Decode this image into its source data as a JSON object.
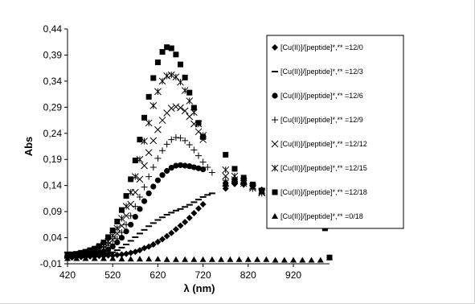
{
  "chart_data": {
    "type": "scatter",
    "title": "",
    "xlabel": "λ (nm)",
    "ylabel": "Abs",
    "xlim": [
      420,
      1000
    ],
    "ylim": [
      -0.01,
      0.44
    ],
    "xticks": [
      420,
      520,
      620,
      720,
      820,
      920
    ],
    "yticks": [
      -0.01,
      0.04,
      0.09,
      0.14,
      0.19,
      0.24,
      0.29,
      0.34,
      0.39,
      0.44
    ],
    "xtick_labels": [
      "420",
      "520",
      "620",
      "720",
      "820",
      "920"
    ],
    "ytick_labels": [
      "-0,01",
      "0,04",
      "0,09",
      "0,14",
      "0,19",
      "0,24",
      "0,29",
      "0,34",
      "0,39",
      "0,44"
    ],
    "grid": false,
    "legend_position": "right",
    "series": [
      {
        "name": "[Cu(II)]/[peptide]*,** =12/0",
        "marker": "diamond",
        "x": [
          420,
          430,
          440,
          450,
          460,
          470,
          480,
          490,
          500,
          510,
          520,
          530,
          540,
          550,
          560,
          570,
          580,
          590,
          600,
          610,
          620,
          630,
          640,
          650,
          660,
          670,
          680,
          690,
          700,
          710,
          720
        ],
        "y": [
          0.002,
          0.002,
          0.003,
          0.003,
          0.003,
          0.004,
          0.004,
          0.005,
          0.005,
          0.006,
          0.006,
          0.007,
          0.008,
          0.009,
          0.011,
          0.013,
          0.016,
          0.02,
          0.023,
          0.027,
          0.032,
          0.037,
          0.043,
          0.049,
          0.056,
          0.063,
          0.07,
          0.078,
          0.087,
          0.096,
          0.104
        ]
      },
      {
        "name": "[Cu(II)]/[peptide]*,** =12/3",
        "marker": "dash",
        "x": [
          420,
          430,
          440,
          450,
          460,
          470,
          480,
          490,
          500,
          510,
          520,
          530,
          540,
          550,
          560,
          570,
          580,
          590,
          600,
          610,
          620,
          630,
          640,
          650,
          660,
          670,
          680,
          690,
          700,
          710,
          720,
          730,
          740
        ],
        "y": [
          0.004,
          0.004,
          0.005,
          0.005,
          0.006,
          0.006,
          0.007,
          0.008,
          0.009,
          0.01,
          0.012,
          0.016,
          0.021,
          0.027,
          0.034,
          0.041,
          0.048,
          0.055,
          0.062,
          0.068,
          0.074,
          0.079,
          0.084,
          0.088,
          0.092,
          0.095,
          0.099,
          0.103,
          0.108,
          0.113,
          0.118,
          0.122,
          0.125
        ]
      },
      {
        "name": "[Cu(II)]/[peptide]*,** =12/6",
        "marker": "circle",
        "x": [
          420,
          430,
          440,
          450,
          460,
          470,
          480,
          490,
          500,
          510,
          520,
          530,
          540,
          550,
          560,
          570,
          580,
          590,
          600,
          610,
          620,
          630,
          640,
          650,
          660,
          670,
          680,
          690,
          700,
          710,
          720
        ],
        "y": [
          0.004,
          0.005,
          0.005,
          0.006,
          0.007,
          0.008,
          0.009,
          0.011,
          0.013,
          0.017,
          0.023,
          0.031,
          0.04,
          0.052,
          0.065,
          0.08,
          0.095,
          0.11,
          0.125,
          0.138,
          0.15,
          0.16,
          0.168,
          0.174,
          0.178,
          0.179,
          0.178,
          0.177,
          0.175,
          0.173,
          0.171
        ]
      },
      {
        "name": "[Cu(II)]/[peptide]*,** =12/9",
        "marker": "plus",
        "x": [
          420,
          430,
          440,
          450,
          460,
          470,
          480,
          490,
          500,
          510,
          520,
          530,
          540,
          550,
          560,
          570,
          580,
          590,
          600,
          610,
          620,
          630,
          640,
          650,
          660,
          670,
          680,
          690,
          700,
          710,
          720,
          730,
          740
        ],
        "y": [
          0.005,
          0.005,
          0.006,
          0.007,
          0.008,
          0.009,
          0.011,
          0.013,
          0.016,
          0.021,
          0.028,
          0.038,
          0.05,
          0.065,
          0.082,
          0.1,
          0.118,
          0.137,
          0.157,
          0.175,
          0.192,
          0.207,
          0.219,
          0.228,
          0.232,
          0.231,
          0.226,
          0.218,
          0.208,
          0.197,
          0.185,
          0.175,
          0.165
        ]
      },
      {
        "name": "[Cu(II)]/[peptide]*,** =12/12",
        "marker": "x",
        "x": [
          420,
          430,
          440,
          450,
          460,
          470,
          480,
          490,
          500,
          510,
          520,
          530,
          540,
          550,
          560,
          570,
          580,
          590,
          600,
          610,
          620,
          630,
          640,
          650,
          660,
          670,
          680,
          690,
          700,
          710,
          720
        ],
        "y": [
          0.006,
          0.006,
          0.007,
          0.008,
          0.009,
          0.011,
          0.013,
          0.016,
          0.02,
          0.027,
          0.036,
          0.048,
          0.063,
          0.082,
          0.104,
          0.127,
          0.152,
          0.178,
          0.203,
          0.226,
          0.247,
          0.265,
          0.279,
          0.288,
          0.291,
          0.289,
          0.283,
          0.272,
          0.258,
          0.243,
          0.228
        ]
      },
      {
        "name": "[Cu(II)]/[peptide]*,** =12/15",
        "marker": "asterisk",
        "x": [
          420,
          430,
          440,
          450,
          460,
          470,
          480,
          490,
          500,
          510,
          520,
          530,
          540,
          550,
          560,
          570,
          580,
          590,
          600,
          610,
          620,
          630,
          640,
          650,
          660,
          670,
          680,
          690,
          700,
          710,
          720
        ],
        "y": [
          0.007,
          0.007,
          0.008,
          0.009,
          0.011,
          0.013,
          0.016,
          0.02,
          0.025,
          0.033,
          0.044,
          0.058,
          0.077,
          0.1,
          0.127,
          0.157,
          0.19,
          0.225,
          0.26,
          0.293,
          0.32,
          0.34,
          0.35,
          0.352,
          0.348,
          0.338,
          0.322,
          0.302,
          0.28,
          0.258,
          0.236
        ]
      },
      {
        "name": "[Cu(II)]/[peptide]*,** =12/18",
        "marker": "square",
        "x": [
          420,
          430,
          440,
          450,
          460,
          470,
          480,
          490,
          500,
          510,
          520,
          530,
          540,
          550,
          560,
          570,
          580,
          590,
          600,
          610,
          620,
          630,
          640,
          650,
          660,
          670,
          680,
          690,
          700,
          710,
          720
        ],
        "y": [
          0.008,
          0.008,
          0.009,
          0.011,
          0.013,
          0.016,
          0.019,
          0.024,
          0.031,
          0.041,
          0.054,
          0.071,
          0.093,
          0.12,
          0.152,
          0.188,
          0.228,
          0.27,
          0.31,
          0.346,
          0.376,
          0.396,
          0.405,
          0.403,
          0.391,
          0.372,
          0.347,
          0.318,
          0.289,
          0.26,
          0.233
        ]
      },
      {
        "name": "[Cu(II)]/[peptide]*,** =0/18",
        "marker": "triangle",
        "x": [
          420,
          440,
          460,
          480,
          500,
          520,
          540,
          560,
          580,
          600,
          620,
          640,
          660,
          680,
          700,
          720,
          740,
          760,
          780,
          800,
          820,
          840,
          860,
          880,
          900,
          920,
          940,
          960,
          980
        ],
        "y": [
          0.0,
          0.0,
          0.0,
          0.0,
          0.0,
          0.0,
          -0.001,
          -0.001,
          -0.001,
          -0.001,
          -0.001,
          -0.002,
          -0.002,
          -0.002,
          -0.002,
          -0.002,
          -0.002,
          -0.002,
          -0.002,
          -0.002,
          -0.002,
          -0.002,
          -0.002,
          -0.003,
          -0.003,
          -0.003,
          -0.003,
          -0.003,
          -0.003
        ]
      }
    ],
    "tail_x": [
      770,
      790,
      810,
      830,
      850,
      870,
      890,
      910,
      930,
      950,
      970,
      990
    ],
    "tail_series": [
      {
        "marker": "diamond",
        "y": [
          0.134,
          0.143,
          0.142,
          0.138,
          0.132,
          0.126,
          0.12,
          0.113,
          0.106,
          0.098,
          0.09,
          0.082
        ]
      },
      {
        "marker": "dash",
        "y": [
          0.139,
          0.145,
          0.144,
          0.14,
          0.134,
          0.127,
          0.12,
          0.112,
          0.104,
          0.096,
          0.088,
          0.08
        ]
      },
      {
        "marker": "circle",
        "y": [
          0.144,
          0.15,
          0.146,
          0.139,
          0.131,
          0.122,
          0.113,
          0.104,
          0.095,
          0.086,
          0.077,
          0.068
        ]
      },
      {
        "marker": "plus",
        "y": [
          0.15,
          0.148,
          0.142,
          0.134,
          0.125,
          0.116,
          0.107,
          0.098,
          0.089,
          0.08,
          0.071,
          0.064
        ]
      },
      {
        "marker": "x",
        "y": [
          0.158,
          0.151,
          0.144,
          0.135,
          0.126,
          0.117,
          0.108,
          0.099,
          0.09,
          0.081,
          0.072,
          0.065
        ]
      },
      {
        "marker": "asterisk",
        "y": [
          0.17,
          0.158,
          0.148,
          0.138,
          0.128,
          0.118,
          0.108,
          0.098,
          0.088,
          0.079,
          0.07,
          0.063
        ]
      },
      {
        "marker": "square",
        "y": [
          0.199,
          0.172,
          0.155,
          0.142,
          0.13,
          0.119,
          0.108,
          0.097,
          0.086,
          0.076,
          0.066,
          0.058
        ]
      }
    ],
    "extra_points": [
      {
        "marker": "triangle",
        "x": 1000,
        "y": 0.002
      },
      {
        "marker": "square",
        "x": 1000,
        "y": 0.002
      }
    ],
    "colors": {
      "marker": "#000000",
      "background": "#ffffff",
      "border": "#000000"
    }
  }
}
